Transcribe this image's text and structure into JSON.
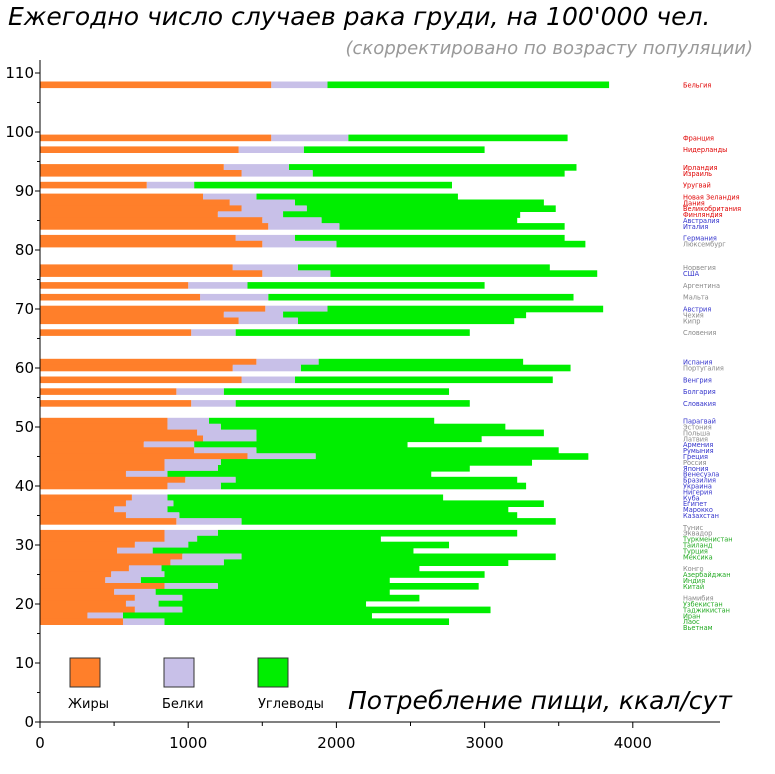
{
  "title": "Ежегодно число случаев рака груди, на 100'000 чел.",
  "subtitle": "(скорректировано по возрасту популяции)",
  "chart_data": {
    "type": "bar",
    "orientation": "horizontal",
    "stacked": true,
    "xlabel": "Потребление пищи, ккал/сут",
    "ylabel": "",
    "xlim": [
      0,
      4500
    ],
    "ylim": [
      0,
      112
    ],
    "xticks": [
      0,
      1000,
      2000,
      3000,
      4000
    ],
    "yticks": [
      0,
      10,
      20,
      30,
      40,
      50,
      60,
      70,
      80,
      90,
      100,
      110
    ],
    "grid": false,
    "legend_position": "bottom-left",
    "colors": {
      "fat": "#ff7f2a",
      "protein": "#c8c0e8",
      "carbs": "#00ee00",
      "red": "#e00000",
      "blue": "#3333cc",
      "gray": "#888888",
      "green": "#22aa22"
    },
    "series": [
      {
        "name": "Жиры",
        "color": "#ff7f2a",
        "key": "fat"
      },
      {
        "name": "Белки",
        "color": "#c8c0e8",
        "key": "protein"
      },
      {
        "name": "Углеводы",
        "color": "#00ee00",
        "key": "carbs"
      }
    ],
    "bars": [
      {
        "y": 108,
        "fat": 1560,
        "protein": 1940,
        "carbs": 3840
      },
      {
        "y": 99,
        "fat": 1560,
        "protein": 2080,
        "carbs": 3560
      },
      {
        "y": 97,
        "fat": 1340,
        "protein": 1780,
        "carbs": 3000
      },
      {
        "y": 94,
        "fat": 1240,
        "protein": 1680,
        "carbs": 3620
      },
      {
        "y": 93,
        "fat": 1360,
        "protein": 1840,
        "carbs": 3540
      },
      {
        "y": 91,
        "fat": 720,
        "protein": 1040,
        "carbs": 2780
      },
      {
        "y": 89,
        "fat": 1100,
        "protein": 1460,
        "carbs": 2820
      },
      {
        "y": 88,
        "fat": 1280,
        "protein": 1720,
        "carbs": 3400
      },
      {
        "y": 87,
        "fat": 1360,
        "protein": 1800,
        "carbs": 3480
      },
      {
        "y": 86,
        "fat": 1200,
        "protein": 1640,
        "carbs": 3240
      },
      {
        "y": 85,
        "fat": 1500,
        "protein": 1900,
        "carbs": 3220
      },
      {
        "y": 84,
        "fat": 1540,
        "protein": 2020,
        "carbs": 3540
      },
      {
        "y": 82,
        "fat": 1320,
        "protein": 1720,
        "carbs": 3540
      },
      {
        "y": 81,
        "fat": 1500,
        "protein": 2000,
        "carbs": 3680
      },
      {
        "y": 77,
        "fat": 1300,
        "protein": 1740,
        "carbs": 3440
      },
      {
        "y": 76,
        "fat": 1500,
        "protein": 1960,
        "carbs": 3760
      },
      {
        "y": 74,
        "fat": 1000,
        "protein": 1400,
        "carbs": 3000
      },
      {
        "y": 72,
        "fat": 1080,
        "protein": 1540,
        "carbs": 3600
      },
      {
        "y": 70,
        "fat": 1520,
        "protein": 1940,
        "carbs": 3800
      },
      {
        "y": 69,
        "fat": 1240,
        "protein": 1640,
        "carbs": 3280
      },
      {
        "y": 68,
        "fat": 1340,
        "protein": 1740,
        "carbs": 3200
      },
      {
        "y": 66,
        "fat": 1020,
        "protein": 1320,
        "carbs": 2900
      },
      {
        "y": 61,
        "fat": 1460,
        "protein": 1880,
        "carbs": 3260
      },
      {
        "y": 60,
        "fat": 1300,
        "protein": 1760,
        "carbs": 3580
      },
      {
        "y": 58,
        "fat": 1360,
        "protein": 1720,
        "carbs": 3460
      },
      {
        "y": 56,
        "fat": 920,
        "protein": 1240,
        "carbs": 2760
      },
      {
        "y": 54,
        "fat": 1020,
        "protein": 1320,
        "carbs": 2900
      },
      {
        "y": 51,
        "fat": 860,
        "protein": 1140,
        "carbs": 2660
      },
      {
        "y": 50,
        "fat": 860,
        "protein": 1220,
        "carbs": 3140
      },
      {
        "y": 49,
        "fat": 1060,
        "protein": 1460,
        "carbs": 3400
      },
      {
        "y": 48,
        "fat": 1100,
        "protein": 1460,
        "carbs": 2980
      },
      {
        "y": 47,
        "fat": 700,
        "protein": 1040,
        "carbs": 2480
      },
      {
        "y": 46,
        "fat": 1040,
        "protein": 1460,
        "carbs": 3500
      },
      {
        "y": 45,
        "fat": 1400,
        "protein": 1860,
        "carbs": 3700
      },
      {
        "y": 44,
        "fat": 840,
        "protein": 1220,
        "carbs": 3320
      },
      {
        "y": 43,
        "fat": 840,
        "protein": 1200,
        "carbs": 2900
      },
      {
        "y": 42,
        "fat": 580,
        "protein": 860,
        "carbs": 2640
      },
      {
        "y": 41,
        "fat": 980,
        "protein": 1320,
        "carbs": 3220
      },
      {
        "y": 40,
        "fat": 860,
        "protein": 1220,
        "carbs": 3280
      },
      {
        "y": 38,
        "fat": 620,
        "protein": 860,
        "carbs": 2720
      },
      {
        "y": 37,
        "fat": 580,
        "protein": 900,
        "carbs": 3400
      },
      {
        "y": 36,
        "fat": 500,
        "protein": 860,
        "carbs": 3160
      },
      {
        "y": 35,
        "fat": 580,
        "protein": 940,
        "carbs": 3220
      },
      {
        "y": 34,
        "fat": 920,
        "protein": 1360,
        "carbs": 3480
      },
      {
        "y": 32,
        "fat": 840,
        "protein": 1200,
        "carbs": 3220
      },
      {
        "y": 31,
        "fat": 840,
        "protein": 1060,
        "carbs": 2300
      },
      {
        "y": 30,
        "fat": 640,
        "protein": 1000,
        "carbs": 2760
      },
      {
        "y": 29,
        "fat": 520,
        "protein": 760,
        "carbs": 2520
      },
      {
        "y": 28,
        "fat": 960,
        "protein": 1360,
        "carbs": 3480
      },
      {
        "y": 27,
        "fat": 880,
        "protein": 1240,
        "carbs": 3160
      },
      {
        "y": 26,
        "fat": 600,
        "protein": 820,
        "carbs": 2560
      },
      {
        "y": 25,
        "fat": 480,
        "protein": 840,
        "carbs": 3000
      },
      {
        "y": 24,
        "fat": 440,
        "protein": 680,
        "carbs": 2360
      },
      {
        "y": 23,
        "fat": 840,
        "protein": 1200,
        "carbs": 2960
      },
      {
        "y": 22,
        "fat": 500,
        "protein": 780,
        "carbs": 2360
      },
      {
        "y": 21,
        "fat": 640,
        "protein": 960,
        "carbs": 2560
      },
      {
        "y": 20,
        "fat": 580,
        "protein": 800,
        "carbs": 2200
      },
      {
        "y": 19,
        "fat": 640,
        "protein": 960,
        "carbs": 3040
      },
      {
        "y": 18,
        "fat": 320,
        "protein": 560,
        "carbs": 2240
      },
      {
        "y": 17,
        "fat": 560,
        "protein": 840,
        "carbs": 2760
      }
    ],
    "country_labels": [
      {
        "y": 108,
        "text": "Бельгия",
        "color": "red"
      },
      {
        "y": 99,
        "text": "Франция",
        "color": "red"
      },
      {
        "y": 97,
        "text": "Нидерланды",
        "color": "red"
      },
      {
        "y": 94,
        "text": "Ирландия",
        "color": "red"
      },
      {
        "y": 93,
        "text": "Израиль",
        "color": "red"
      },
      {
        "y": 91,
        "text": "Уругвай",
        "color": "red"
      },
      {
        "y": 89,
        "text": "Новая Зеландия",
        "color": "red"
      },
      {
        "y": 88,
        "text": "Дания",
        "color": "red"
      },
      {
        "y": 87,
        "text": "Великобритания",
        "color": "red"
      },
      {
        "y": 86,
        "text": "Финляндия",
        "color": "red"
      },
      {
        "y": 85,
        "text": "Австралия",
        "color": "blue"
      },
      {
        "y": 84,
        "text": "Италия",
        "color": "blue"
      },
      {
        "y": 82,
        "text": "Германия",
        "color": "blue"
      },
      {
        "y": 81,
        "text": "Люксембург",
        "color": "gray"
      },
      {
        "y": 77,
        "text": "Норвегия",
        "color": "gray"
      },
      {
        "y": 76,
        "text": "США",
        "color": "blue"
      },
      {
        "y": 74,
        "text": "Аргентина",
        "color": "gray"
      },
      {
        "y": 72,
        "text": "Мальта",
        "color": "gray"
      },
      {
        "y": 70,
        "text": "Австрия",
        "color": "blue"
      },
      {
        "y": 69,
        "text": "Чехия",
        "color": "gray"
      },
      {
        "y": 68,
        "text": "Кипр",
        "color": "gray"
      },
      {
        "y": 66,
        "text": "Словения",
        "color": "gray"
      },
      {
        "y": 61,
        "text": "Испания",
        "color": "blue"
      },
      {
        "y": 60,
        "text": "Португалия",
        "color": "gray"
      },
      {
        "y": 58,
        "text": "Венгрия",
        "color": "blue"
      },
      {
        "y": 56,
        "text": "Болгария",
        "color": "blue"
      },
      {
        "y": 54,
        "text": "Словакия",
        "color": "blue"
      },
      {
        "y": 51,
        "text": "Парагвай",
        "color": "blue"
      },
      {
        "y": 50,
        "text": "Эстония",
        "color": "gray"
      },
      {
        "y": 49,
        "text": "Польша",
        "color": "gray"
      },
      {
        "y": 48,
        "text": "Латвия",
        "color": "gray"
      },
      {
        "y": 47,
        "text": "Армения",
        "color": "blue"
      },
      {
        "y": 46,
        "text": "Румыния",
        "color": "blue"
      },
      {
        "y": 45,
        "text": "Греция",
        "color": "blue"
      },
      {
        "y": 44,
        "text": "Россия",
        "color": "gray"
      },
      {
        "y": 43,
        "text": "Япония",
        "color": "blue"
      },
      {
        "y": 42,
        "text": "Венесуэла",
        "color": "blue"
      },
      {
        "y": 41,
        "text": "Бразилия",
        "color": "blue"
      },
      {
        "y": 40,
        "text": "Украина",
        "color": "blue"
      },
      {
        "y": 39,
        "text": "Нигерия",
        "color": "blue"
      },
      {
        "y": 38,
        "text": "Куба",
        "color": "blue"
      },
      {
        "y": 37,
        "text": "Египет",
        "color": "blue"
      },
      {
        "y": 36,
        "text": "Марокко",
        "color": "blue"
      },
      {
        "y": 35,
        "text": "Казахстан",
        "color": "blue"
      },
      {
        "y": 33,
        "text": "Тунис",
        "color": "gray"
      },
      {
        "y": 32,
        "text": "Эквадор",
        "color": "gray"
      },
      {
        "y": 31,
        "text": "Туркменистан",
        "color": "green"
      },
      {
        "y": 30,
        "text": "Таиланд",
        "color": "green"
      },
      {
        "y": 29,
        "text": "Турция",
        "color": "green"
      },
      {
        "y": 28,
        "text": "Мексика",
        "color": "green"
      },
      {
        "y": 26,
        "text": "Конго",
        "color": "gray"
      },
      {
        "y": 25,
        "text": "Азербайджан",
        "color": "green"
      },
      {
        "y": 24,
        "text": "Индия",
        "color": "green"
      },
      {
        "y": 23,
        "text": "Китай",
        "color": "green"
      },
      {
        "y": 21,
        "text": "Намибия",
        "color": "gray"
      },
      {
        "y": 20,
        "text": "Узбекистан",
        "color": "green"
      },
      {
        "y": 19,
        "text": "Таджикистан",
        "color": "green"
      },
      {
        "y": 18,
        "text": "Иран",
        "color": "green"
      },
      {
        "y": 17,
        "text": "Лаос",
        "color": "green"
      },
      {
        "y": 16,
        "text": "Вьетнам",
        "color": "green"
      }
    ]
  }
}
